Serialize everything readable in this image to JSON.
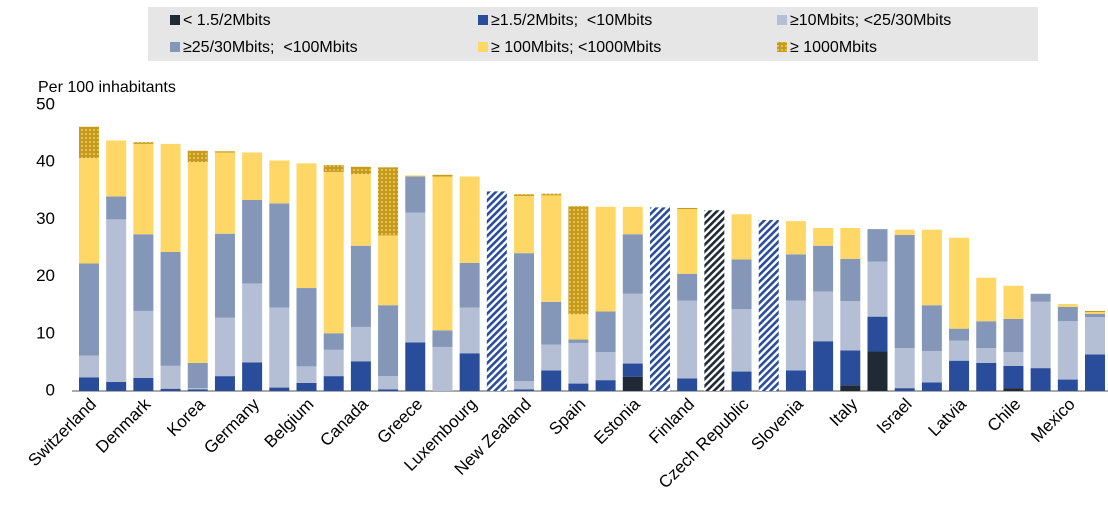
{
  "chart_data": {
    "type": "bar",
    "stacked": true,
    "y_label": "Per 100 inhabitants",
    "categories": [
      "Switzerland",
      null,
      "Denmark",
      null,
      "Korea",
      null,
      "Germany",
      null,
      "Belgium",
      null,
      "Canada",
      null,
      "Greece",
      null,
      "Luxembourg",
      null,
      "New Zealand",
      null,
      "Spain",
      null,
      "Estonia",
      null,
      "Finland",
      null,
      "Czech Republic",
      null,
      "Slovenia",
      null,
      "Italy",
      null,
      "Israel",
      null,
      "Latvia",
      null,
      "Chile",
      null,
      "Mexico",
      null
    ],
    "ylim": [
      0,
      50
    ],
    "yticks": [
      0,
      10,
      20,
      30,
      40,
      50
    ],
    "grid": false,
    "series": [
      {
        "name": "< 1.5/2Mbits",
        "color": "#1f2a36",
        "values": [
          0,
          0,
          0,
          0,
          0,
          0,
          0,
          0,
          0,
          0,
          0,
          0,
          0,
          0,
          0,
          null,
          0,
          0,
          0,
          0,
          2.5,
          null,
          0,
          null,
          0,
          null,
          0,
          0,
          1,
          6.9,
          0,
          0,
          0,
          0,
          0.5,
          0,
          0,
          0
        ]
      },
      {
        "name": "≥1.5/2Mbits;  <10Mbits",
        "color": "#2a4d9b",
        "values": [
          2.4,
          1.6,
          2.3,
          0.4,
          0.3,
          2.6,
          5,
          0.6,
          1.4,
          2.6,
          5.2,
          0.3,
          8.5,
          0,
          6.6,
          null,
          0.3,
          3.6,
          1.3,
          1.9,
          2.3,
          null,
          2.2,
          null,
          3.4,
          null,
          3.6,
          8.7,
          6.1,
          6.1,
          0.5,
          1.5,
          5.3,
          4.9,
          3.9,
          4,
          2,
          6.4
        ]
      },
      {
        "name": "≥10Mbits; <25/30Mbits",
        "color": "#b4bfd6",
        "values": [
          3.8,
          28.4,
          11.7,
          4,
          0.2,
          10.2,
          13.8,
          14,
          2.9,
          4.6,
          6,
          2.3,
          22.7,
          7.7,
          8,
          null,
          1.4,
          4.5,
          7.1,
          4.9,
          12.2,
          null,
          13.6,
          null,
          10.9,
          null,
          12.2,
          8.7,
          8.6,
          9.6,
          7,
          5.5,
          3.5,
          2.6,
          2.4,
          11.6,
          10.2,
          6.5
        ]
      },
      {
        "name": "≥25/30Mbits;  <100Mbits",
        "color": "#8497b9",
        "values": [
          16.1,
          4,
          13.4,
          19.9,
          4.4,
          14.7,
          14.6,
          18.2,
          13.7,
          2.9,
          14.2,
          12.4,
          6.3,
          2.9,
          7.8,
          null,
          22.4,
          7.5,
          0.6,
          7.1,
          10.4,
          null,
          4.7,
          null,
          8.7,
          null,
          8.1,
          8,
          7.4,
          5.7,
          19.8,
          8,
          2.1,
          4.7,
          5.8,
          1.4,
          2.5,
          0.6
        ]
      },
      {
        "name": "≥ 100Mbits; <1000Mbits",
        "color": "#ffd766",
        "values": [
          18.4,
          9.8,
          15.8,
          18.9,
          35.1,
          14.2,
          8.3,
          7.5,
          21.8,
          28.2,
          12.5,
          12.2,
          0.2,
          26.9,
          15.1,
          null,
          10,
          18.6,
          4.4,
          18.3,
          4.8,
          null,
          11.3,
          null,
          7.9,
          null,
          5.8,
          3.1,
          5.4,
          0,
          0.9,
          13.2,
          15.9,
          7.6,
          5.8,
          0,
          0.5,
          0.3
        ]
      },
      {
        "name": "≥ 1000Mbits",
        "color": "#c79a1a",
        "pattern": "dots",
        "values": [
          5.5,
          0,
          0.3,
          0,
          2,
          0.2,
          0,
          0,
          0,
          1.2,
          1.3,
          11.9,
          0,
          0.3,
          0,
          null,
          0.3,
          0.3,
          18.9,
          0,
          0,
          null,
          0.2,
          null,
          0,
          null,
          0,
          0,
          0,
          0,
          0,
          0,
          0,
          0,
          0,
          0,
          0,
          0.2
        ]
      },
      {
        "color": "#2a4d9b",
        "pattern": "hatch",
        "values": [
          null,
          null,
          null,
          null,
          null,
          null,
          null,
          null,
          null,
          null,
          null,
          null,
          null,
          null,
          null,
          34.9,
          null,
          null,
          null,
          null,
          null,
          32.1,
          null,
          null,
          null,
          29.9,
          null,
          null,
          null,
          null,
          null,
          null,
          null,
          null,
          null,
          null,
          null,
          null
        ]
      },
      {
        "color": "#1f2a36",
        "pattern": "hatch",
        "values": [
          null,
          null,
          null,
          null,
          null,
          null,
          null,
          null,
          null,
          null,
          null,
          null,
          null,
          null,
          null,
          null,
          null,
          null,
          null,
          null,
          null,
          null,
          null,
          31.6,
          null,
          null,
          null,
          null,
          null,
          null,
          null,
          null,
          null,
          null,
          null,
          null,
          null,
          null
        ]
      }
    ]
  }
}
